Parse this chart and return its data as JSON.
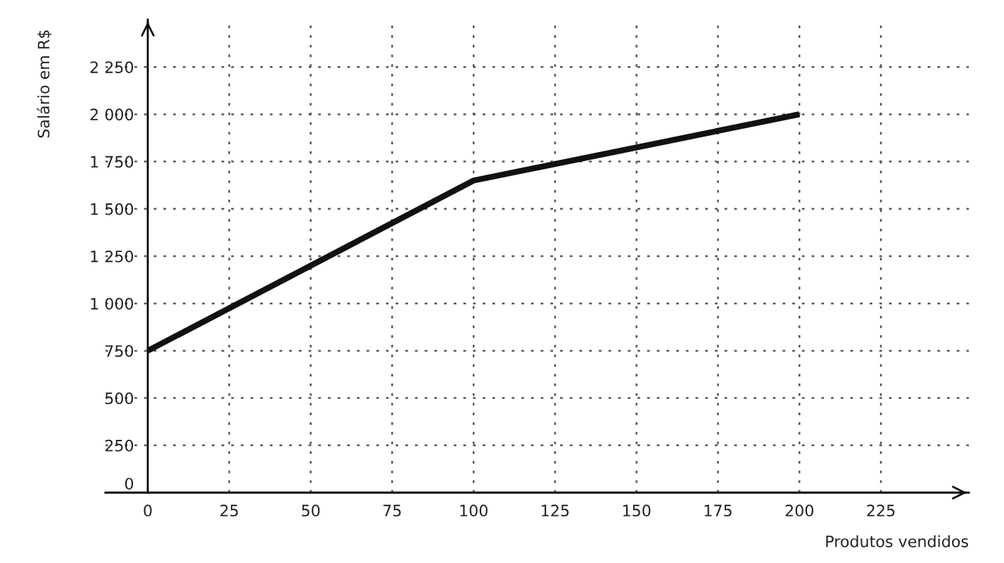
{
  "chart_data": {
    "type": "line",
    "xlabel": "Produtos vendidos",
    "ylabel": "Salário em R$",
    "x": [
      0,
      100,
      200
    ],
    "series": [
      {
        "color": "#111111",
        "values": [
          750,
          1650,
          2000
        ]
      }
    ],
    "xlim": [
      -13,
      252
    ],
    "ylim": [
      0,
      2500
    ],
    "xticks": [
      0,
      25,
      50,
      75,
      100,
      125,
      150,
      175,
      200,
      225
    ],
    "yticks": [
      0,
      250,
      500,
      750,
      {
        "value": 1000,
        "label": "1 000"
      },
      {
        "value": 1250,
        "label": "1 250"
      },
      {
        "value": 1500,
        "label": "1 500"
      },
      {
        "value": 1750,
        "label": "1 750"
      },
      {
        "value": 2000,
        "label": "2 000"
      },
      {
        "value": 2250,
        "label": "2 250"
      }
    ],
    "grid": true,
    "marker": "none",
    "line_style": "solid",
    "legend": false
  }
}
